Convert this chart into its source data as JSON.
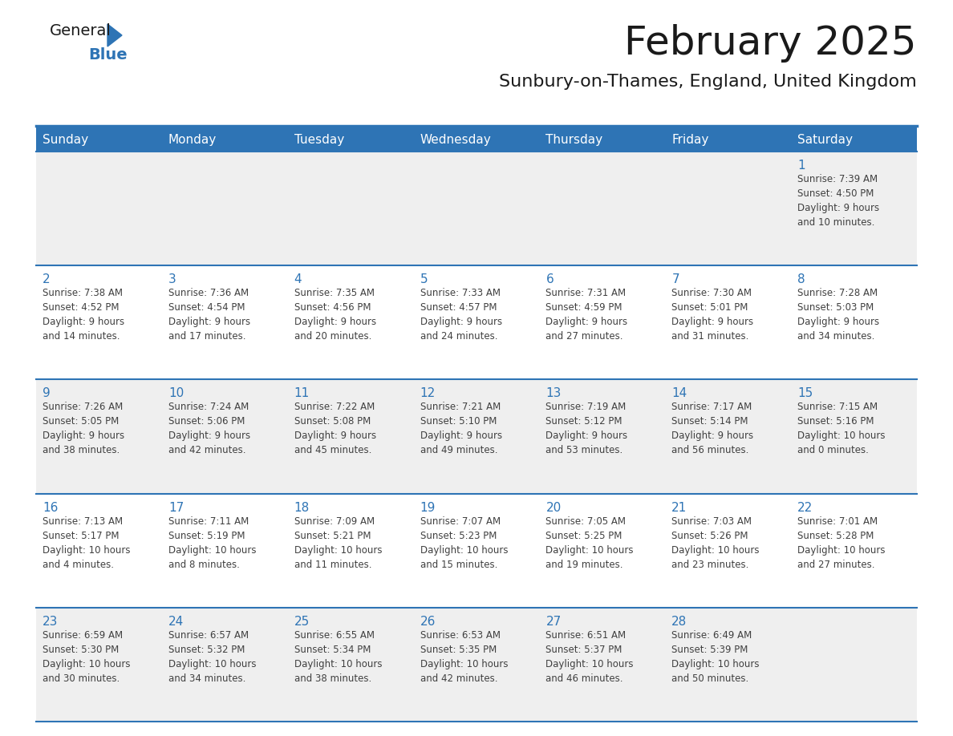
{
  "title": "February 2025",
  "subtitle": "Sunbury-on-Thames, England, United Kingdom",
  "days_of_week": [
    "Sunday",
    "Monday",
    "Tuesday",
    "Wednesday",
    "Thursday",
    "Friday",
    "Saturday"
  ],
  "header_bg": "#2E74B5",
  "header_text": "#FFFFFF",
  "row_bg_odd": "#EFEFEF",
  "row_bg_even": "#FFFFFF",
  "cell_border": "#2E74B5",
  "day_number_color": "#2E74B5",
  "info_text_color": "#404040",
  "title_color": "#1A1A1A",
  "subtitle_color": "#1A1A1A",
  "logo_general_color": "#1A1A1A",
  "logo_blue_color": "#2E74B5",
  "calendar_data": [
    [
      {
        "day": "",
        "info": ""
      },
      {
        "day": "",
        "info": ""
      },
      {
        "day": "",
        "info": ""
      },
      {
        "day": "",
        "info": ""
      },
      {
        "day": "",
        "info": ""
      },
      {
        "day": "",
        "info": ""
      },
      {
        "day": "1",
        "info": "Sunrise: 7:39 AM\nSunset: 4:50 PM\nDaylight: 9 hours\nand 10 minutes."
      }
    ],
    [
      {
        "day": "2",
        "info": "Sunrise: 7:38 AM\nSunset: 4:52 PM\nDaylight: 9 hours\nand 14 minutes."
      },
      {
        "day": "3",
        "info": "Sunrise: 7:36 AM\nSunset: 4:54 PM\nDaylight: 9 hours\nand 17 minutes."
      },
      {
        "day": "4",
        "info": "Sunrise: 7:35 AM\nSunset: 4:56 PM\nDaylight: 9 hours\nand 20 minutes."
      },
      {
        "day": "5",
        "info": "Sunrise: 7:33 AM\nSunset: 4:57 PM\nDaylight: 9 hours\nand 24 minutes."
      },
      {
        "day": "6",
        "info": "Sunrise: 7:31 AM\nSunset: 4:59 PM\nDaylight: 9 hours\nand 27 minutes."
      },
      {
        "day": "7",
        "info": "Sunrise: 7:30 AM\nSunset: 5:01 PM\nDaylight: 9 hours\nand 31 minutes."
      },
      {
        "day": "8",
        "info": "Sunrise: 7:28 AM\nSunset: 5:03 PM\nDaylight: 9 hours\nand 34 minutes."
      }
    ],
    [
      {
        "day": "9",
        "info": "Sunrise: 7:26 AM\nSunset: 5:05 PM\nDaylight: 9 hours\nand 38 minutes."
      },
      {
        "day": "10",
        "info": "Sunrise: 7:24 AM\nSunset: 5:06 PM\nDaylight: 9 hours\nand 42 minutes."
      },
      {
        "day": "11",
        "info": "Sunrise: 7:22 AM\nSunset: 5:08 PM\nDaylight: 9 hours\nand 45 minutes."
      },
      {
        "day": "12",
        "info": "Sunrise: 7:21 AM\nSunset: 5:10 PM\nDaylight: 9 hours\nand 49 minutes."
      },
      {
        "day": "13",
        "info": "Sunrise: 7:19 AM\nSunset: 5:12 PM\nDaylight: 9 hours\nand 53 minutes."
      },
      {
        "day": "14",
        "info": "Sunrise: 7:17 AM\nSunset: 5:14 PM\nDaylight: 9 hours\nand 56 minutes."
      },
      {
        "day": "15",
        "info": "Sunrise: 7:15 AM\nSunset: 5:16 PM\nDaylight: 10 hours\nand 0 minutes."
      }
    ],
    [
      {
        "day": "16",
        "info": "Sunrise: 7:13 AM\nSunset: 5:17 PM\nDaylight: 10 hours\nand 4 minutes."
      },
      {
        "day": "17",
        "info": "Sunrise: 7:11 AM\nSunset: 5:19 PM\nDaylight: 10 hours\nand 8 minutes."
      },
      {
        "day": "18",
        "info": "Sunrise: 7:09 AM\nSunset: 5:21 PM\nDaylight: 10 hours\nand 11 minutes."
      },
      {
        "day": "19",
        "info": "Sunrise: 7:07 AM\nSunset: 5:23 PM\nDaylight: 10 hours\nand 15 minutes."
      },
      {
        "day": "20",
        "info": "Sunrise: 7:05 AM\nSunset: 5:25 PM\nDaylight: 10 hours\nand 19 minutes."
      },
      {
        "day": "21",
        "info": "Sunrise: 7:03 AM\nSunset: 5:26 PM\nDaylight: 10 hours\nand 23 minutes."
      },
      {
        "day": "22",
        "info": "Sunrise: 7:01 AM\nSunset: 5:28 PM\nDaylight: 10 hours\nand 27 minutes."
      }
    ],
    [
      {
        "day": "23",
        "info": "Sunrise: 6:59 AM\nSunset: 5:30 PM\nDaylight: 10 hours\nand 30 minutes."
      },
      {
        "day": "24",
        "info": "Sunrise: 6:57 AM\nSunset: 5:32 PM\nDaylight: 10 hours\nand 34 minutes."
      },
      {
        "day": "25",
        "info": "Sunrise: 6:55 AM\nSunset: 5:34 PM\nDaylight: 10 hours\nand 38 minutes."
      },
      {
        "day": "26",
        "info": "Sunrise: 6:53 AM\nSunset: 5:35 PM\nDaylight: 10 hours\nand 42 minutes."
      },
      {
        "day": "27",
        "info": "Sunrise: 6:51 AM\nSunset: 5:37 PM\nDaylight: 10 hours\nand 46 minutes."
      },
      {
        "day": "28",
        "info": "Sunrise: 6:49 AM\nSunset: 5:39 PM\nDaylight: 10 hours\nand 50 minutes."
      },
      {
        "day": "",
        "info": ""
      }
    ]
  ]
}
